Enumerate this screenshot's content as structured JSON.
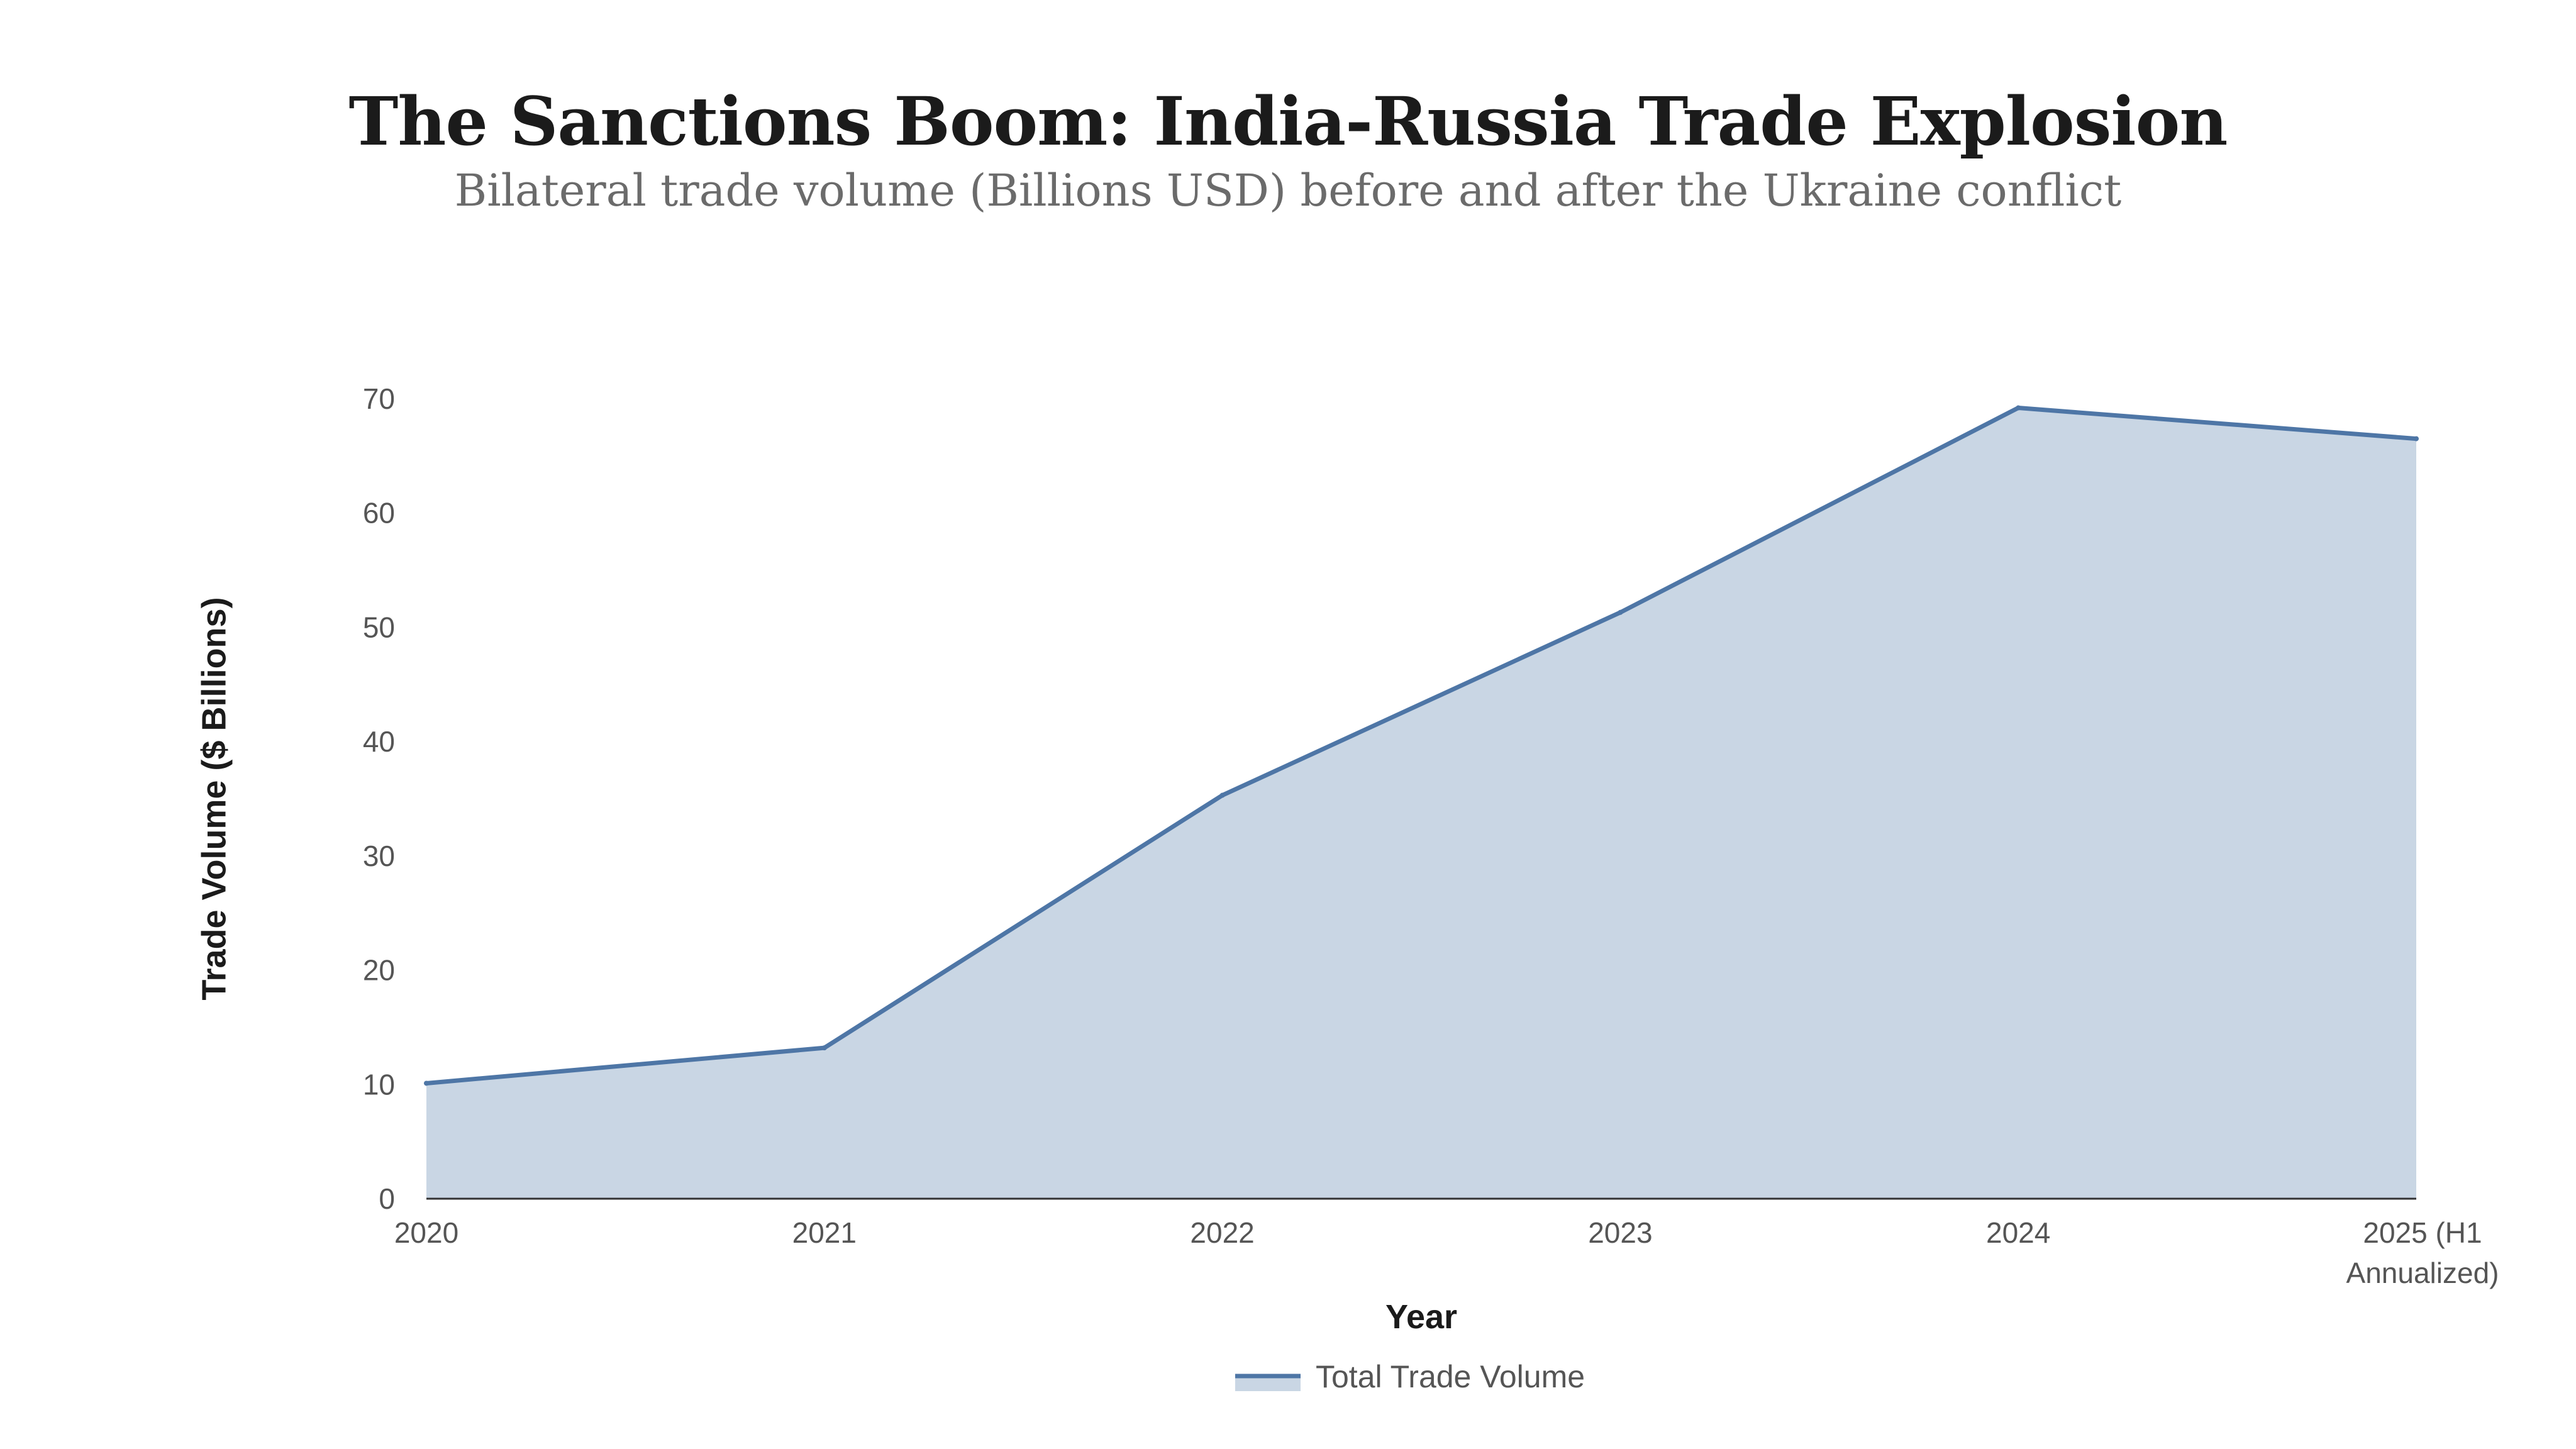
{
  "title": "The Sanctions Boom: India-Russia Trade Explosion",
  "subtitle": "Bilateral trade volume (Billions USD) before and after the Ukraine conflict",
  "chart_data": {
    "type": "area",
    "title": "The Sanctions Boom: India-Russia Trade Explosion",
    "subtitle": "Bilateral trade volume (Billions USD) before and after the Ukraine conflict",
    "xlabel": "Year",
    "ylabel": "Trade Volume ($ Billions)",
    "categories": [
      "2020",
      "2021",
      "2022",
      "2023",
      "2024",
      "2025 (H1 Annualized)"
    ],
    "category_lines": [
      [
        "2020"
      ],
      [
        "2021"
      ],
      [
        "2022"
      ],
      [
        "2023"
      ],
      [
        "2024"
      ],
      [
        "2025 (H1",
        "Annualized)"
      ]
    ],
    "series": [
      {
        "name": "Total Trade Volume",
        "values": [
          10.1,
          13.2,
          35.3,
          51.3,
          69.2,
          66.5
        ],
        "line_color": "#4e76a6",
        "fill_color": "#c9d6e4"
      }
    ],
    "ylim": [
      0,
      70
    ],
    "yticks": [
      0,
      10,
      20,
      30,
      40,
      50,
      60,
      70
    ],
    "grid": false,
    "legend_position": "bottom-center"
  }
}
